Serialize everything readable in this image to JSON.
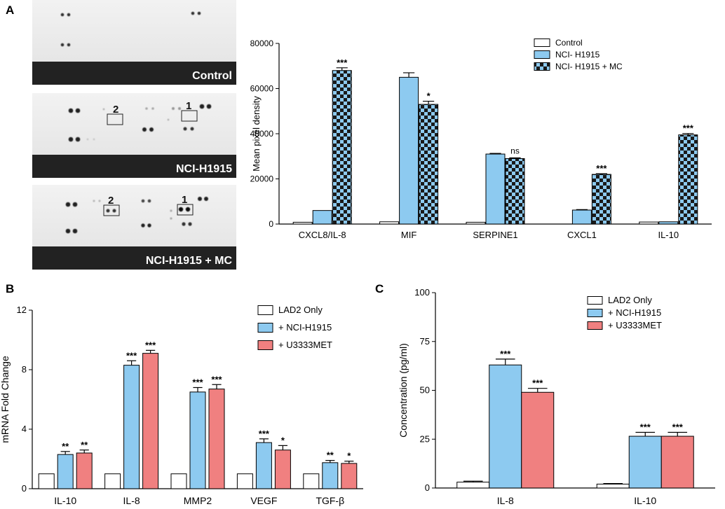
{
  "panel_labels": [
    "A",
    "B",
    "C"
  ],
  "blots": [
    {
      "label": "Control"
    },
    {
      "label": "NCI-H1915",
      "boxes": [
        "2",
        "1"
      ]
    },
    {
      "label": "NCI-H1915 + MC",
      "boxes": [
        "2",
        "1"
      ]
    }
  ],
  "colors": {
    "white": "#ffffff",
    "blue": "#8dcaf0",
    "red": "#f08080",
    "dark": "#222222",
    "band": "#222222"
  },
  "chart_data": [
    {
      "id": "A",
      "type": "bar",
      "title": "",
      "xlabel": "",
      "ylabel": "Mean pixel density",
      "ylim": [
        0,
        80000
      ],
      "yticks": [
        "0",
        "20000",
        "40000",
        "60000",
        "80000"
      ],
      "categories": [
        "CXCL8/IL-8",
        "MIF",
        "SERPINE1",
        "CXCL1",
        "IL-10"
      ],
      "legend_position": "top-right",
      "series": [
        {
          "name": "Control",
          "style": "white",
          "values": [
            800,
            1000,
            800,
            0,
            900
          ],
          "errors": [
            0,
            0,
            0,
            0,
            0
          ]
        },
        {
          "name": "NCI- H1915",
          "style": "blue",
          "values": [
            6000,
            65000,
            31000,
            6200,
            1000
          ],
          "errors": [
            0,
            2000,
            300,
            200,
            0
          ]
        },
        {
          "name": "NCI- H1915 + MC",
          "style": "checker",
          "values": [
            68000,
            53000,
            29000,
            22000,
            39500
          ],
          "errors": [
            1200,
            1400,
            300,
            300,
            600
          ]
        }
      ],
      "annotations": [
        {
          "category": 0,
          "series": 2,
          "text": "***"
        },
        {
          "category": 1,
          "series": 2,
          "text": "*"
        },
        {
          "category": 2,
          "series": 2,
          "text": "ns"
        },
        {
          "category": 3,
          "series": 2,
          "text": "***"
        },
        {
          "category": 4,
          "series": 2,
          "text": "***"
        }
      ]
    },
    {
      "id": "B",
      "type": "bar",
      "title": "",
      "xlabel": "",
      "ylabel": "mRNA Fold Change",
      "ylim": [
        0,
        12
      ],
      "yticks": [
        "0",
        "4",
        "8",
        "12"
      ],
      "categories": [
        "IL-10",
        "IL-8",
        "MMP2",
        "VEGF",
        "TGF-β"
      ],
      "legend_position": "top-right",
      "series": [
        {
          "name": "LAD2 Only",
          "style": "white",
          "values": [
            1,
            1,
            1,
            1,
            1
          ],
          "errors": [
            0,
            0,
            0,
            0,
            0
          ]
        },
        {
          "name": "+ NCI-H1915",
          "style": "blue",
          "values": [
            2.3,
            8.3,
            6.5,
            3.1,
            1.75
          ],
          "errors": [
            0.2,
            0.3,
            0.3,
            0.25,
            0.15
          ]
        },
        {
          "name": "+ U3333MET",
          "style": "red",
          "values": [
            2.4,
            9.1,
            6.7,
            2.6,
            1.7
          ],
          "errors": [
            0.2,
            0.2,
            0.3,
            0.3,
            0.15
          ]
        }
      ],
      "annotations": [
        {
          "category": 0,
          "series": 1,
          "text": "**"
        },
        {
          "category": 0,
          "series": 2,
          "text": "**"
        },
        {
          "category": 1,
          "series": 1,
          "text": "***"
        },
        {
          "category": 1,
          "series": 2,
          "text": "***"
        },
        {
          "category": 2,
          "series": 1,
          "text": "***"
        },
        {
          "category": 2,
          "series": 2,
          "text": "***"
        },
        {
          "category": 3,
          "series": 1,
          "text": "***"
        },
        {
          "category": 3,
          "series": 2,
          "text": "*"
        },
        {
          "category": 4,
          "series": 1,
          "text": "**"
        },
        {
          "category": 4,
          "series": 2,
          "text": "*"
        }
      ]
    },
    {
      "id": "C",
      "type": "bar",
      "title": "",
      "xlabel": "",
      "ylabel": "Concentration (pg/ml)",
      "ylim": [
        0,
        100
      ],
      "yticks": [
        "0",
        "25",
        "50",
        "75",
        "100"
      ],
      "categories": [
        "IL-8",
        "IL-10"
      ],
      "legend_position": "top-right",
      "series": [
        {
          "name": "LAD2 Only",
          "style": "white",
          "values": [
            3,
            2
          ],
          "errors": [
            0.5,
            0.3
          ]
        },
        {
          "name": "+ NCI-H1915",
          "style": "blue",
          "values": [
            63,
            26.5
          ],
          "errors": [
            3,
            2
          ]
        },
        {
          "name": "+ U3333MET",
          "style": "red",
          "values": [
            49,
            26.5
          ],
          "errors": [
            2,
            2
          ]
        }
      ],
      "annotations": [
        {
          "category": 0,
          "series": 1,
          "text": "***"
        },
        {
          "category": 0,
          "series": 2,
          "text": "***"
        },
        {
          "category": 1,
          "series": 1,
          "text": "***"
        },
        {
          "category": 1,
          "series": 2,
          "text": "***"
        }
      ]
    }
  ]
}
